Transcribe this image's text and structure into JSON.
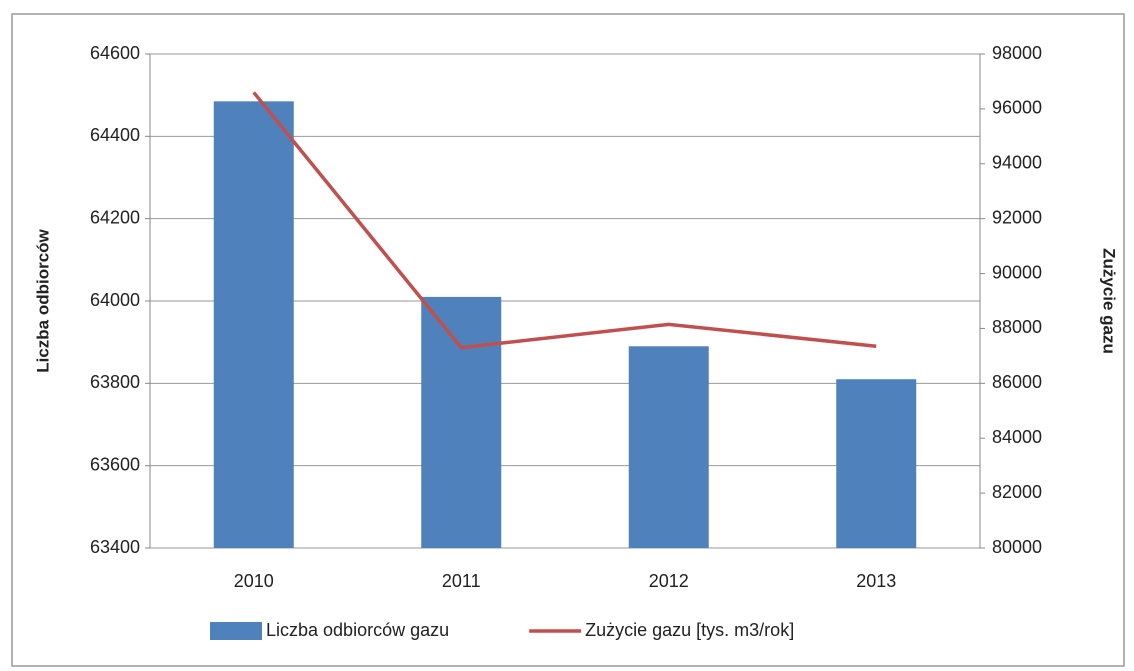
{
  "chart_data": {
    "type": "combo",
    "categories": [
      "2010",
      "2011",
      "2012",
      "2013"
    ],
    "series": [
      {
        "name": "Liczba odbiorców gazu",
        "type": "bar",
        "axis": "y",
        "color": "#4f81bd",
        "values": [
          64485,
          64010,
          63890,
          63810
        ]
      },
      {
        "name": "Zużycie gazu [tys. m3/rok]",
        "type": "line",
        "axis": "y2",
        "color": "#c0504d",
        "values": [
          96600,
          87300,
          88150,
          87350
        ]
      }
    ],
    "ylabel": "Liczba odbiorców",
    "y2label": "Zużycie gazu",
    "ylim": [
      63400,
      64600
    ],
    "yticks": [
      63400,
      63600,
      63800,
      64000,
      64200,
      64400,
      64600
    ],
    "y2lim": [
      80000,
      98000
    ],
    "y2ticks": [
      80000,
      82000,
      84000,
      86000,
      88000,
      90000,
      92000,
      94000,
      96000,
      98000
    ],
    "grid": true,
    "legend": "bottom"
  }
}
